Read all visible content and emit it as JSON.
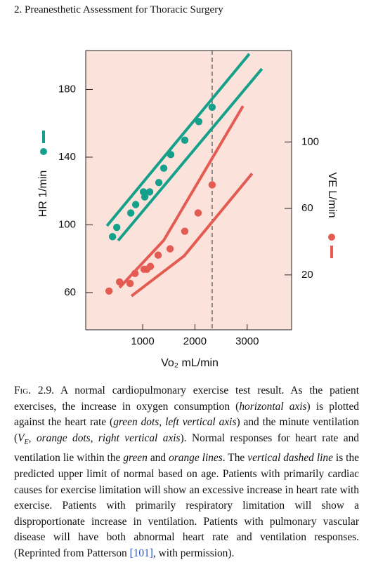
{
  "header": {
    "title": "2. Preanesthetic Assessment for Thoracic Surgery"
  },
  "chart_data": {
    "type": "scatter",
    "xlabel": "Vo₂ mL/min",
    "ylabel": "HR 1/min",
    "y2label": "VE L/min",
    "xlim": [
      -90,
      3850
    ],
    "xticks": [
      1000,
      2000,
      3000
    ],
    "ylim": [
      38,
      203
    ],
    "yticks": [
      60,
      100,
      140,
      180
    ],
    "y2lim": [
      -13,
      155
    ],
    "y2ticks": [
      20,
      60,
      100
    ],
    "background": "#fbe3dc",
    "vline": 2330,
    "series": [
      {
        "color": "#14a08a",
        "x": [
          423,
          504,
          772,
          866,
          1014,
          1040,
          1134,
          1309,
          1403,
          1537,
          1806,
          2074,
          2329
        ],
        "values": [
          93,
          98.5,
          107,
          112,
          119.5,
          116.5,
          119.5,
          125,
          133.5,
          141.5,
          150,
          161,
          169.5
        ]
      },
      {
        "color": "#e45b52",
        "axis": "y2",
        "x": [
          356,
          557,
          759,
          853,
          1027,
          1081,
          1148,
          1296,
          1524,
          1806,
          2061,
          2329
        ],
        "values": [
          10.3,
          15.8,
          14.9,
          20.9,
          23.4,
          23.4,
          25.1,
          31.9,
          35.7,
          46.3,
          57.3,
          74.2
        ]
      }
    ],
    "lines": [
      {
        "color": "#14a08a",
        "x": [
          316,
          3041
        ],
        "values": [
          99.4,
          201
        ]
      },
      {
        "color": "#14a08a",
        "x": [
          531,
          3282
        ],
        "values": [
          90.7,
          192.2
        ]
      },
      {
        "color": "#e45b52",
        "axis": "y2",
        "x": [
          557,
          1403,
          2920
        ],
        "values": [
          12.4,
          40.8,
          121.6
        ]
      },
      {
        "color": "#e45b52",
        "axis": "y2",
        "x": [
          785,
          1792,
          3094
        ],
        "values": [
          7.3,
          31.4,
          81
        ]
      }
    ]
  },
  "caption": [
    {
      "text": "Fig. 2.9.",
      "smallcaps": true
    },
    {
      "text": " A normal cardiopulmonary exercise test result. As the patient exercises, the increase in oxygen consumption ("
    },
    {
      "text": "horizontal axis",
      "italic": true
    },
    {
      "text": ") is plotted against the heart rate ("
    },
    {
      "text": "green dots, left vertical axis",
      "italic": true
    },
    {
      "text": ") and the minute ventilation ("
    },
    {
      "text": "V",
      "italic": true
    },
    {
      "text": "E",
      "italic": true,
      "sub": true
    },
    {
      "text": ", "
    },
    {
      "text": "orange dots, right vertical axis",
      "italic": true
    },
    {
      "text": "). Normal responses for heart rate and ventilation lie within the "
    },
    {
      "text": "green",
      "italic": true
    },
    {
      "text": " and "
    },
    {
      "text": "orange lines",
      "italic": true
    },
    {
      "text": ". The "
    },
    {
      "text": "vertical dashed line",
      "italic": true
    },
    {
      "text": " is the predicted upper limit of normal based on age. Patients with primarily cardiac causes for exercise limitation will show an excessive increase in heart rate with exercise. Patients with primarily respiratory limitation will show a disproportionate increase in ventilation. Patients with pulmonary vascular disease will have both abnormal heart rate and ventilation responses. (Reprinted from Patterson "
    },
    {
      "text": "[101]",
      "link": true
    },
    {
      "text": ", with permission)."
    }
  ]
}
